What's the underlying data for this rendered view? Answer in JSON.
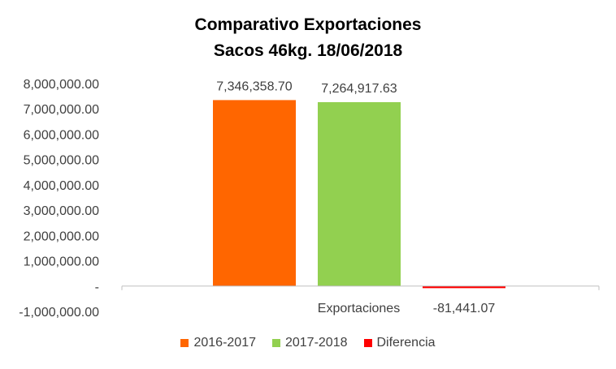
{
  "chart_data": {
    "type": "bar",
    "title_line1": "Comparativo Exportaciones",
    "title_line2": "Sacos 46kg. 18/06/2018",
    "categories": [
      "Exportaciones"
    ],
    "series": [
      {
        "name": "2016-2017",
        "values": [
          7346358.7
        ],
        "label": "7,346,358.70",
        "color": "#FF6600"
      },
      {
        "name": "2017-2018",
        "values": [
          7264917.63
        ],
        "label": "7,264,917.63",
        "color": "#92D050"
      },
      {
        "name": "Diferencia",
        "values": [
          -81441.07
        ],
        "label": "-81,441.07",
        "color": "#FF0000"
      }
    ],
    "ylim": [
      -1000000,
      8000000
    ],
    "yticks": [
      {
        "value": 8000000,
        "label": "8,000,000.00"
      },
      {
        "value": 7000000,
        "label": "7,000,000.00"
      },
      {
        "value": 6000000,
        "label": "6,000,000.00"
      },
      {
        "value": 5000000,
        "label": "5,000,000.00"
      },
      {
        "value": 4000000,
        "label": "4,000,000.00"
      },
      {
        "value": 3000000,
        "label": "3,000,000.00"
      },
      {
        "value": 2000000,
        "label": "2,000,000.00"
      },
      {
        "value": 1000000,
        "label": "1,000,000.00"
      },
      {
        "value": 0,
        "label": "-"
      },
      {
        "value": -1000000,
        "label": "-1,000,000.00"
      }
    ],
    "grid": false,
    "legend_position": "bottom"
  }
}
